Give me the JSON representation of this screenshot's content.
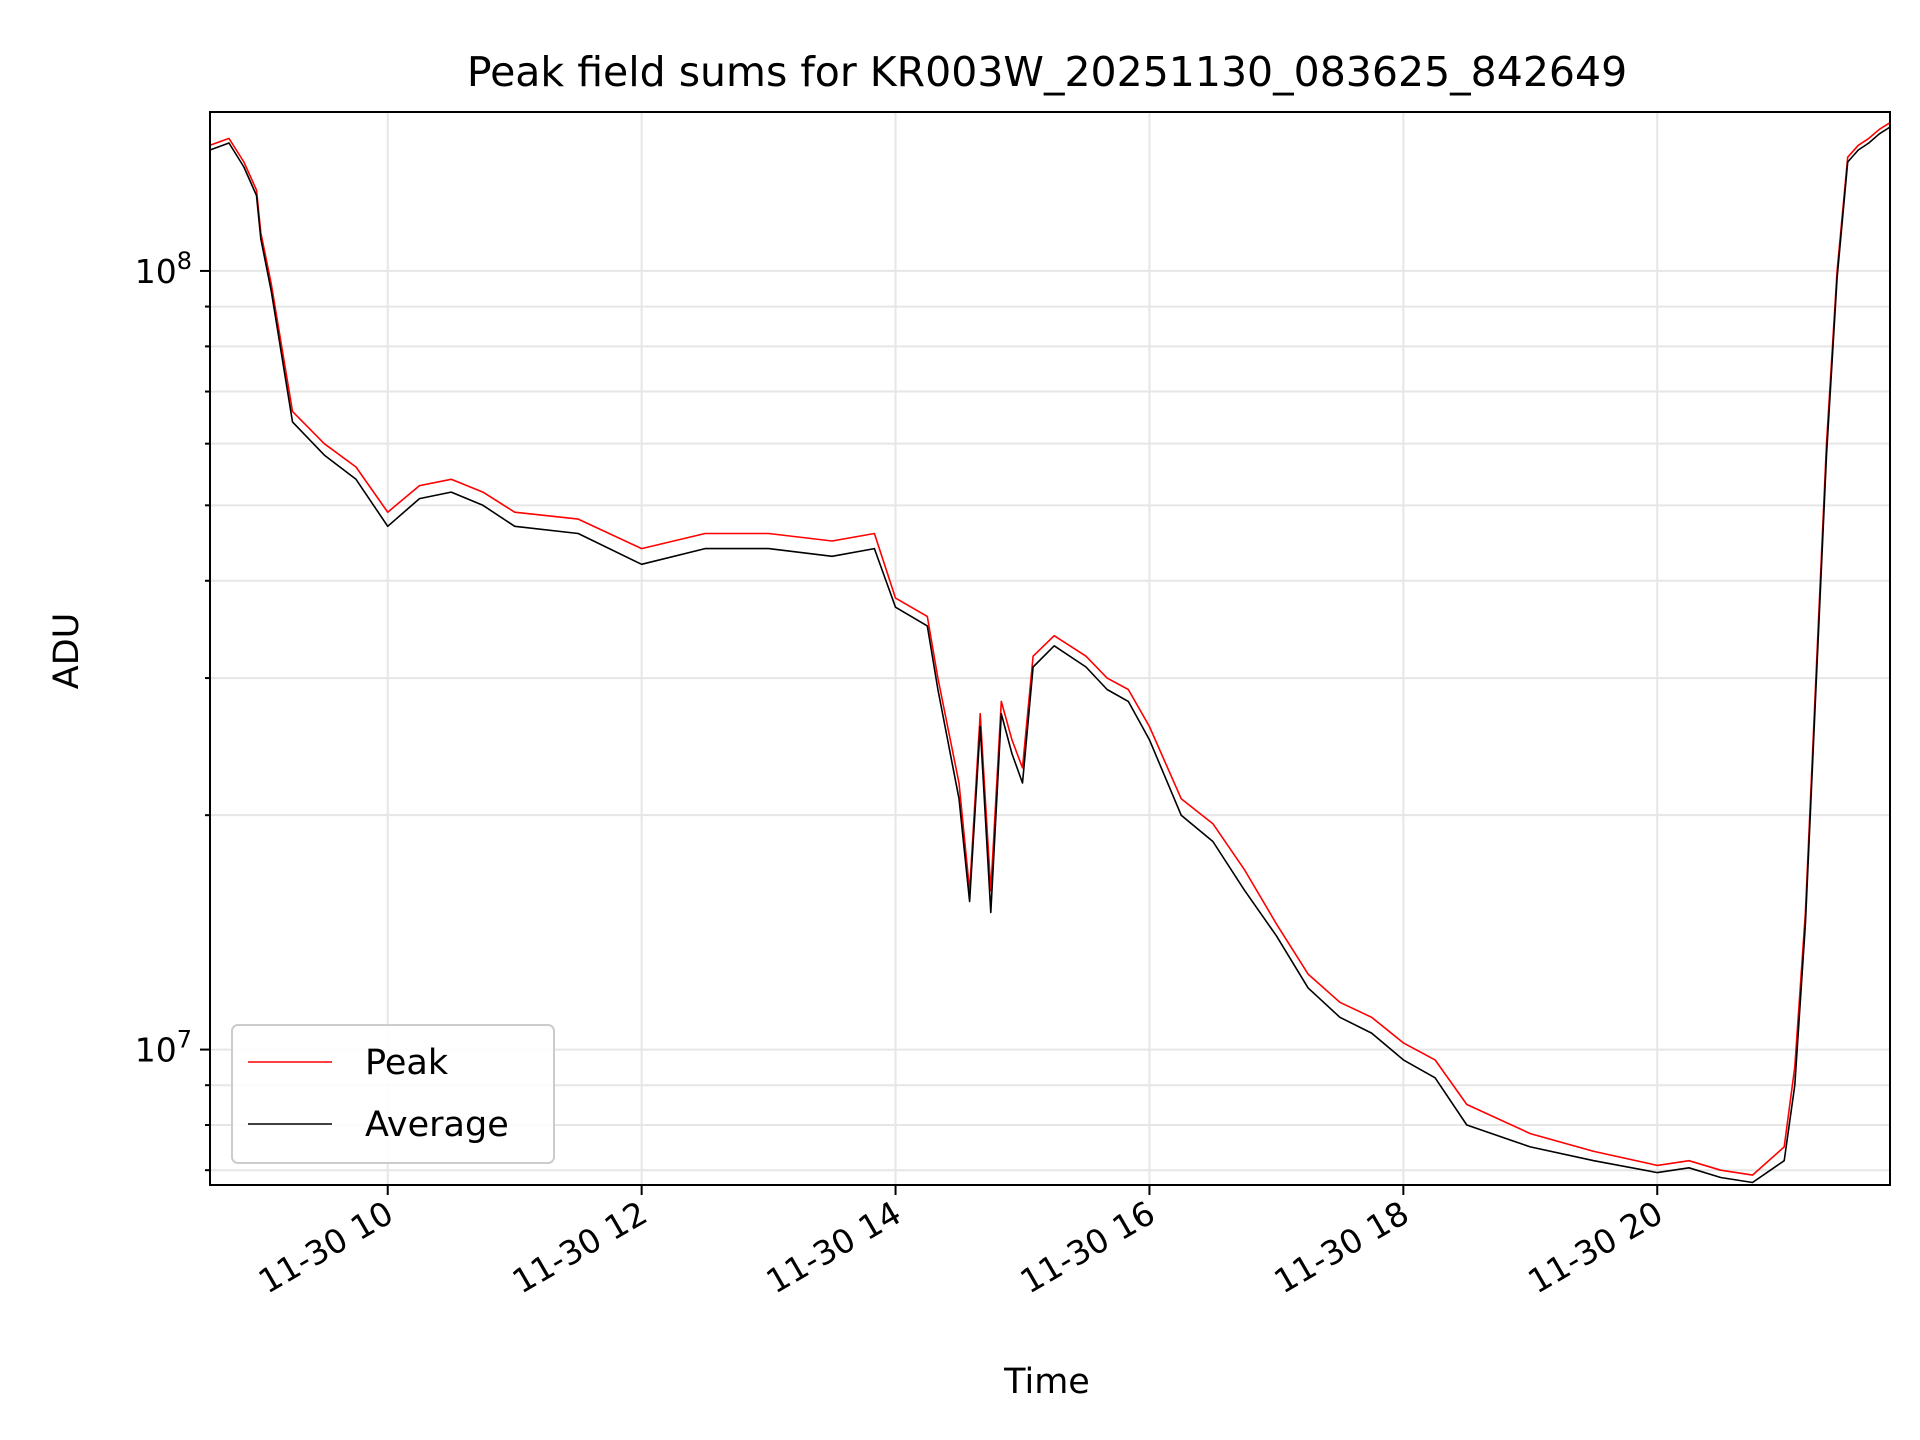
{
  "chart_data": {
    "type": "line",
    "title": "Peak field sums for KR003W_20251130_083625_842649",
    "xlabel": "Time",
    "ylabel": "ADU",
    "y_scale": "log",
    "xlim": [
      "2025-11-30 08:36",
      "2025-11-30 21:50"
    ],
    "ylim": [
      6700000,
      160000000
    ],
    "x_ticks": [
      {
        "value": "2025-11-30 10:00",
        "label": "11-30 10"
      },
      {
        "value": "2025-11-30 12:00",
        "label": "11-30 12"
      },
      {
        "value": "2025-11-30 14:00",
        "label": "11-30 14"
      },
      {
        "value": "2025-11-30 16:00",
        "label": "11-30 16"
      },
      {
        "value": "2025-11-30 18:00",
        "label": "11-30 18"
      },
      {
        "value": "2025-11-30 20:00",
        "label": "11-30 20"
      }
    ],
    "y_ticks": [
      {
        "value": 10000000,
        "base": "10",
        "exp": "7"
      },
      {
        "value": 100000000,
        "base": "10",
        "exp": "8"
      }
    ],
    "grid": true,
    "legend_position": "lower-left",
    "colors": {
      "peak": "#ff0000",
      "average": "#000000"
    },
    "series": [
      {
        "name": "Peak",
        "x": [
          "2025-11-30 08:36",
          "2025-11-30 08:45",
          "2025-11-30 08:52",
          "2025-11-30 08:58",
          "2025-11-30 09:00",
          "2025-11-30 09:05",
          "2025-11-30 09:15",
          "2025-11-30 09:30",
          "2025-11-30 09:45",
          "2025-11-30 10:00",
          "2025-11-30 10:15",
          "2025-11-30 10:30",
          "2025-11-30 10:45",
          "2025-11-30 11:00",
          "2025-11-30 11:30",
          "2025-11-30 12:00",
          "2025-11-30 12:30",
          "2025-11-30 13:00",
          "2025-11-30 13:30",
          "2025-11-30 13:50",
          "2025-11-30 14:00",
          "2025-11-30 14:15",
          "2025-11-30 14:20",
          "2025-11-30 14:30",
          "2025-11-30 14:35",
          "2025-11-30 14:40",
          "2025-11-30 14:45",
          "2025-11-30 14:50",
          "2025-11-30 14:55",
          "2025-11-30 15:00",
          "2025-11-30 15:05",
          "2025-11-30 15:15",
          "2025-11-30 15:30",
          "2025-11-30 15:40",
          "2025-11-30 15:50",
          "2025-11-30 16:00",
          "2025-11-30 16:15",
          "2025-11-30 16:30",
          "2025-11-30 16:45",
          "2025-11-30 17:00",
          "2025-11-30 17:15",
          "2025-11-30 17:30",
          "2025-11-30 17:45",
          "2025-11-30 18:00",
          "2025-11-30 18:15",
          "2025-11-30 18:30",
          "2025-11-30 19:00",
          "2025-11-30 19:30",
          "2025-11-30 20:00",
          "2025-11-30 20:15",
          "2025-11-30 20:30",
          "2025-11-30 20:45",
          "2025-11-30 21:00",
          "2025-11-30 21:05",
          "2025-11-30 21:10",
          "2025-11-30 21:15",
          "2025-11-30 21:20",
          "2025-11-30 21:25",
          "2025-11-30 21:30",
          "2025-11-30 21:35",
          "2025-11-30 21:40",
          "2025-11-30 21:45",
          "2025-11-30 21:50"
        ],
        "values": [
          145000000,
          148000000,
          138000000,
          127000000,
          112000000,
          96000000,
          66000000,
          60000000,
          56000000,
          49000000,
          53000000,
          54000000,
          52000000,
          49000000,
          48000000,
          44000000,
          46000000,
          46000000,
          45000000,
          46000000,
          38000000,
          36000000,
          30000000,
          22000000,
          16000000,
          27000000,
          16000000,
          28000000,
          25000000,
          23000000,
          32000000,
          34000000,
          32000000,
          30000000,
          29000000,
          26000000,
          21000000,
          19500000,
          17000000,
          14500000,
          12500000,
          11500000,
          11000000,
          10200000,
          9700000,
          8500000,
          7800000,
          7400000,
          7100000,
          7200000,
          7000000,
          6900000,
          7500000,
          9500000,
          15000000,
          30000000,
          60000000,
          100000000,
          140000000,
          145000000,
          148000000,
          152000000,
          155000000
        ]
      },
      {
        "name": "Average",
        "x": [
          "2025-11-30 08:36",
          "2025-11-30 08:45",
          "2025-11-30 08:52",
          "2025-11-30 08:58",
          "2025-11-30 09:00",
          "2025-11-30 09:05",
          "2025-11-30 09:15",
          "2025-11-30 09:30",
          "2025-11-30 09:45",
          "2025-11-30 10:00",
          "2025-11-30 10:15",
          "2025-11-30 10:30",
          "2025-11-30 10:45",
          "2025-11-30 11:00",
          "2025-11-30 11:30",
          "2025-11-30 12:00",
          "2025-11-30 12:30",
          "2025-11-30 13:00",
          "2025-11-30 13:30",
          "2025-11-30 13:50",
          "2025-11-30 14:00",
          "2025-11-30 14:15",
          "2025-11-30 14:20",
          "2025-11-30 14:30",
          "2025-11-30 14:35",
          "2025-11-30 14:40",
          "2025-11-30 14:45",
          "2025-11-30 14:50",
          "2025-11-30 14:55",
          "2025-11-30 15:00",
          "2025-11-30 15:05",
          "2025-11-30 15:15",
          "2025-11-30 15:30",
          "2025-11-30 15:40",
          "2025-11-30 15:50",
          "2025-11-30 16:00",
          "2025-11-30 16:15",
          "2025-11-30 16:30",
          "2025-11-30 16:45",
          "2025-11-30 17:00",
          "2025-11-30 17:15",
          "2025-11-30 17:30",
          "2025-11-30 17:45",
          "2025-11-30 18:00",
          "2025-11-30 18:15",
          "2025-11-30 18:30",
          "2025-11-30 19:00",
          "2025-11-30 19:30",
          "2025-11-30 20:00",
          "2025-11-30 20:15",
          "2025-11-30 20:30",
          "2025-11-30 20:45",
          "2025-11-30 21:00",
          "2025-11-30 21:05",
          "2025-11-30 21:10",
          "2025-11-30 21:15",
          "2025-11-30 21:20",
          "2025-11-30 21:25",
          "2025-11-30 21:30",
          "2025-11-30 21:35",
          "2025-11-30 21:40",
          "2025-11-30 21:45",
          "2025-11-30 21:50"
        ],
        "values": [
          143000000,
          146000000,
          136000000,
          125000000,
          110000000,
          94000000,
          64000000,
          58000000,
          54000000,
          47000000,
          51000000,
          52000000,
          50000000,
          47000000,
          46000000,
          42000000,
          44000000,
          44000000,
          43000000,
          44000000,
          37000000,
          35000000,
          29000000,
          21000000,
          15500000,
          26000000,
          15000000,
          27000000,
          24000000,
          22000000,
          31000000,
          33000000,
          31000000,
          29000000,
          28000000,
          25000000,
          20000000,
          18500000,
          16000000,
          14000000,
          12000000,
          11000000,
          10500000,
          9700000,
          9200000,
          8000000,
          7500000,
          7200000,
          6950000,
          7050000,
          6850000,
          6750000,
          7200000,
          9000000,
          14500000,
          29000000,
          58000000,
          98000000,
          138000000,
          143000000,
          146000000,
          150000000,
          153000000
        ]
      }
    ]
  }
}
